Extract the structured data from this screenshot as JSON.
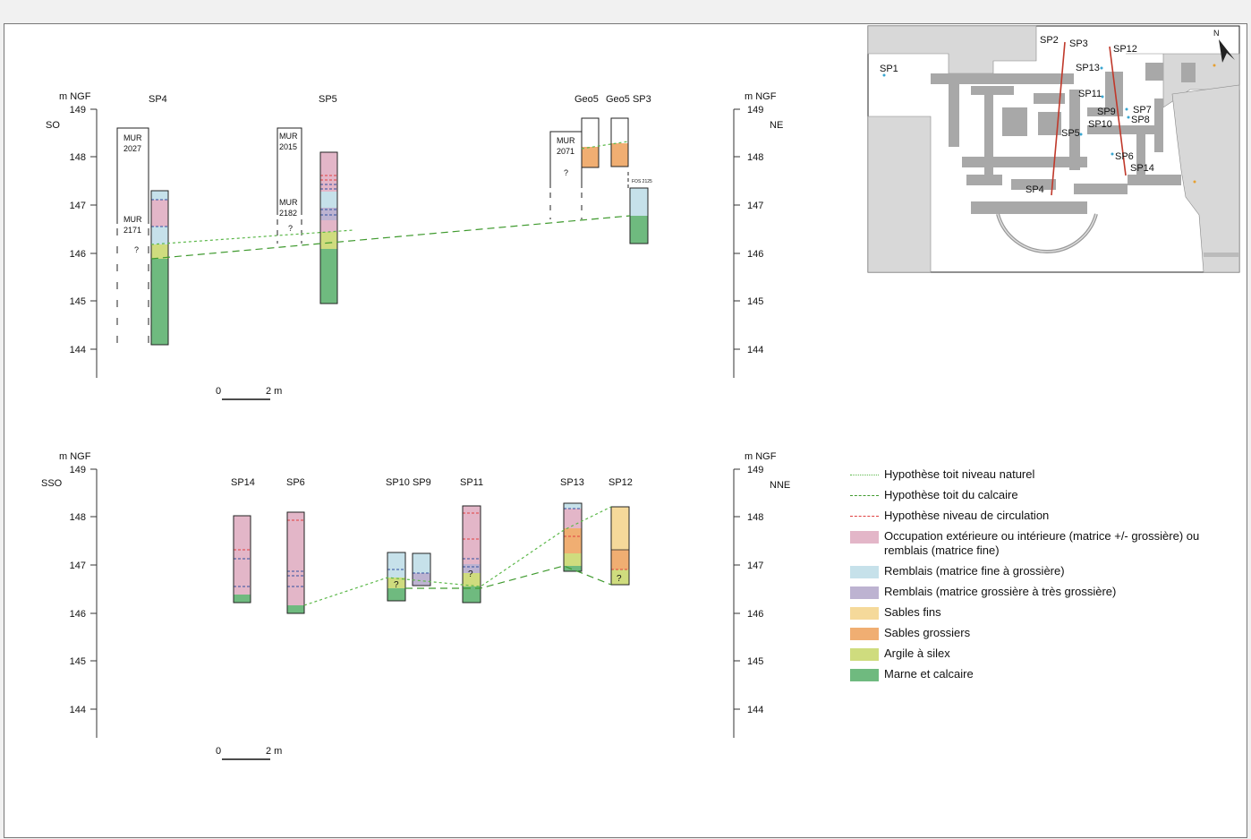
{
  "colors": {
    "occupation": "#e3b6c8",
    "remblais_fin": "#c6e1ea",
    "remblais_grossier": "#bdb3d1",
    "sables_fins": "#f5d99a",
    "sables_grossiers": "#f0ae72",
    "argile": "#cfdc7e",
    "marne": "#6fba7f",
    "line_naturel": "#5cb84a",
    "line_calcaire": "#3f9a2e",
    "line_circulation": "#e04040",
    "interface": "#3050a0"
  },
  "panels": [
    {
      "unit": "m NGF",
      "orient_left": "SO",
      "orient_right": "NE",
      "ticks": [
        "149",
        "148",
        "147",
        "146",
        "145",
        "144"
      ],
      "scale_zero": "0",
      "scale_label": "2 m",
      "labels": [
        "SP4",
        "SP5",
        "Geo5",
        "Geo5 SP3"
      ],
      "walls": [
        "MUR\n2027",
        "MUR\n2171",
        "MUR\n2015",
        "MUR\n2182",
        "MUR\n2071",
        "FOS 2125"
      ],
      "question": "?"
    },
    {
      "unit": "m NGF",
      "orient_left": "SSO",
      "orient_right": "NNE",
      "ticks": [
        "149",
        "148",
        "147",
        "146",
        "145",
        "144"
      ],
      "scale_zero": "0",
      "scale_label": "2 m",
      "labels": [
        "SP14",
        "SP6",
        "SP10 SP9",
        "SP11",
        "SP13",
        "SP12"
      ],
      "question": "?"
    }
  ],
  "map": {
    "points": [
      "SP1",
      "SP2",
      "SP3",
      "SP12",
      "SP13",
      "SP11",
      "SP9",
      "SP7",
      "SP10",
      "SP8",
      "SP5",
      "SP6",
      "SP14",
      "SP4"
    ],
    "north": "N"
  },
  "legend": [
    {
      "label": "Hypothèse toit niveau naturel",
      "type": "line",
      "color": "#5cb84a"
    },
    {
      "label": "Hypothèse toit du calcaire",
      "type": "line",
      "color": "#3f9a2e"
    },
    {
      "label": "Hypothèse niveau de circulation",
      "type": "line",
      "color": "#e04040"
    },
    {
      "label": "Occupation extérieure ou intérieure (matrice +/- grossière) ou remblais (matrice fine)",
      "type": "box",
      "color": "#e3b6c8"
    },
    {
      "label": "Remblais (matrice fine à grossière)",
      "type": "box",
      "color": "#c6e1ea"
    },
    {
      "label": "Remblais (matrice grossière à très grossière)",
      "type": "box",
      "color": "#bdb3d1"
    },
    {
      "label": "Sables fins",
      "type": "box",
      "color": "#f5d99a"
    },
    {
      "label": "Sables grossiers",
      "type": "box",
      "color": "#f0ae72"
    },
    {
      "label": "Argile à silex",
      "type": "box",
      "color": "#cfdc7e"
    },
    {
      "label": "Marne et calcaire",
      "type": "box",
      "color": "#6fba7f"
    }
  ]
}
